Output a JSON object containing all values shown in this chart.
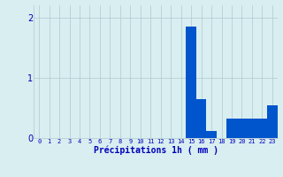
{
  "hours": [
    0,
    1,
    2,
    3,
    4,
    5,
    6,
    7,
    8,
    9,
    10,
    11,
    12,
    13,
    14,
    15,
    16,
    17,
    18,
    19,
    20,
    21,
    22,
    23
  ],
  "values": [
    0,
    0,
    0,
    0,
    0,
    0,
    0,
    0,
    0,
    0,
    0,
    0,
    0,
    0,
    0,
    1.85,
    0.65,
    0.12,
    0,
    0.32,
    0.32,
    0.32,
    0.32,
    0.55
  ],
  "bar_color": "#0055CC",
  "bg_color": "#D8EEF0",
  "grid_color": "#B0C8D0",
  "xlabel": "Précipitations 1h ( mm )",
  "xlabel_color": "#0000BB",
  "tick_color": "#0000BB",
  "ylim": [
    0,
    2.2
  ],
  "yticks": [
    0,
    1,
    2
  ],
  "figsize": [
    3.2,
    2.0
  ],
  "dpi": 100
}
